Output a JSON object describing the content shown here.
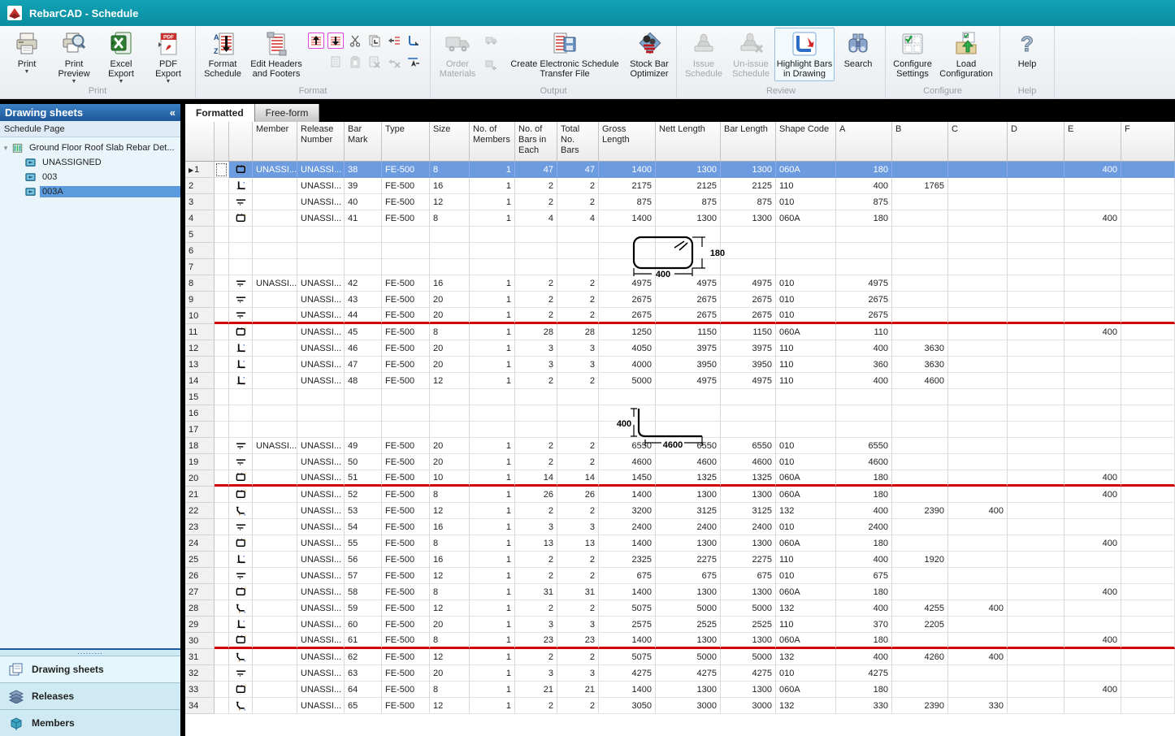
{
  "window": {
    "title": "RebarCAD - Schedule"
  },
  "ribbon": {
    "groups": [
      {
        "label": "Print",
        "buttons": [
          {
            "label": "Print",
            "icon": "printer",
            "dropdown": true
          },
          {
            "label": "Print Preview",
            "icon": "print-preview",
            "dropdown": true
          },
          {
            "label": "Excel Export",
            "icon": "excel",
            "dropdown": true
          },
          {
            "label": "PDF Export",
            "icon": "pdf",
            "dropdown": true
          }
        ]
      },
      {
        "label": "Format",
        "buttons": [
          {
            "label": "Format Schedule",
            "icon": "format-schedule"
          },
          {
            "label": "Edit Headers and Footers",
            "icon": "edit-headers",
            "mid": true
          }
        ],
        "small_top": [
          "move-bar-up",
          "move-bar-down",
          "cut",
          "copy",
          "insert-row",
          "renumber"
        ],
        "small_top_framed": [
          true,
          true,
          false,
          false,
          false,
          false
        ],
        "small_bottom": [
          "page",
          "paste",
          "delete-row",
          "delete-bar",
          "pick"
        ],
        "small_bottom_disabled": [
          true,
          true,
          true,
          true,
          false
        ]
      },
      {
        "label": "Output",
        "buttons": [
          {
            "label": "Order Materials",
            "icon": "truck",
            "disabled": true
          },
          {
            "label": "Create Electronic Schedule Transfer File",
            "icon": "transfer",
            "wide": true
          },
          {
            "label": "Stock Bar Optimizer",
            "icon": "optimizer"
          }
        ],
        "small_col": [
          "export-small-1",
          "export-small-2"
        ]
      },
      {
        "label": "Review",
        "buttons": [
          {
            "label": "Issue Schedule",
            "icon": "stamp",
            "disabled": true
          },
          {
            "label": "Un-issue Schedule",
            "icon": "stamp-x",
            "disabled": true
          },
          {
            "label": "Highlight Bars in Drawing",
            "icon": "highlight",
            "active": true,
            "mid": true
          },
          {
            "label": "Search",
            "icon": "binoculars"
          }
        ]
      },
      {
        "label": "Configure",
        "buttons": [
          {
            "label": "Configure Settings",
            "icon": "settings"
          },
          {
            "label": "Load Configuration",
            "icon": "load-config",
            "mid": true
          }
        ]
      },
      {
        "label": "Help",
        "buttons": [
          {
            "label": "Help",
            "icon": "help"
          }
        ]
      }
    ]
  },
  "sidebar": {
    "title": "Drawing sheets",
    "subtitle": "Schedule Page",
    "tree": {
      "root": "Ground Floor Roof Slab Rebar Det...",
      "children": [
        "UNASSIGNED",
        "003",
        "003A"
      ],
      "selected_index": 2
    },
    "nav": [
      "Drawing sheets",
      "Releases",
      "Members"
    ],
    "nav_active_index": 0
  },
  "tabs": {
    "labels": [
      "Formatted",
      "Free-form"
    ],
    "active": "Formatted"
  },
  "table": {
    "columns": [
      "Member",
      "Release Number",
      "Bar Mark",
      "Type",
      "Size",
      "No. of Members",
      "No. of Bars in Each",
      "Total No. Bars",
      "Gross Length",
      "Nett Length",
      "Bar Length",
      "Shape Code",
      "A",
      "B",
      "C",
      "D",
      "E",
      "F"
    ],
    "rows": [
      {
        "n": "1",
        "ic": "link",
        "m": "UNASSI...",
        "r": "UNASSI...",
        "mk": "38",
        "t": "FE-500",
        "s": "8",
        "nm": "1",
        "nb": "47",
        "tn": "47",
        "g": "1400",
        "nt": "1300",
        "bl": "1300",
        "sc": "060A",
        "A": "180",
        "E": "400",
        "sel": true
      },
      {
        "n": "2",
        "ic": "bent",
        "r": "UNASSI...",
        "mk": "39",
        "t": "FE-500",
        "s": "16",
        "nm": "1",
        "nb": "2",
        "tn": "2",
        "g": "2175",
        "nt": "2125",
        "bl": "2125",
        "sc": "110",
        "A": "400",
        "B": "1765"
      },
      {
        "n": "3",
        "ic": "straight",
        "r": "UNASSI...",
        "mk": "40",
        "t": "FE-500",
        "s": "12",
        "nm": "1",
        "nb": "2",
        "tn": "2",
        "g": "875",
        "nt": "875",
        "bl": "875",
        "sc": "010",
        "A": "875"
      },
      {
        "n": "4",
        "ic": "link",
        "r": "UNASSI...",
        "mk": "41",
        "t": "FE-500",
        "s": "8",
        "nm": "1",
        "nb": "4",
        "tn": "4",
        "g": "1400",
        "nt": "1300",
        "bl": "1300",
        "sc": "060A",
        "A": "180",
        "E": "400"
      },
      {
        "n": "5",
        "empty": true
      },
      {
        "n": "6",
        "empty": true
      },
      {
        "n": "7",
        "empty": true
      },
      {
        "n": "8",
        "ic": "straight",
        "m": "UNASSI...",
        "r": "UNASSI...",
        "mk": "42",
        "t": "FE-500",
        "s": "16",
        "nm": "1",
        "nb": "2",
        "tn": "2",
        "g": "4975",
        "nt": "4975",
        "bl": "4975",
        "sc": "010",
        "A": "4975"
      },
      {
        "n": "9",
        "ic": "straight",
        "r": "UNASSI...",
        "mk": "43",
        "t": "FE-500",
        "s": "20",
        "nm": "1",
        "nb": "2",
        "tn": "2",
        "g": "2675",
        "nt": "2675",
        "bl": "2675",
        "sc": "010",
        "A": "2675"
      },
      {
        "n": "10",
        "ic": "straight",
        "r": "UNASSI...",
        "mk": "44",
        "t": "FE-500",
        "s": "20",
        "nm": "1",
        "nb": "2",
        "tn": "2",
        "g": "2675",
        "nt": "2675",
        "bl": "2675",
        "sc": "010",
        "A": "2675",
        "red": true
      },
      {
        "n": "11",
        "ic": "link",
        "r": "UNASSI...",
        "mk": "45",
        "t": "FE-500",
        "s": "8",
        "nm": "1",
        "nb": "28",
        "tn": "28",
        "g": "1250",
        "nt": "1150",
        "bl": "1150",
        "sc": "060A",
        "A": "110",
        "E": "400"
      },
      {
        "n": "12",
        "ic": "bent",
        "r": "UNASSI...",
        "mk": "46",
        "t": "FE-500",
        "s": "20",
        "nm": "1",
        "nb": "3",
        "tn": "3",
        "g": "4050",
        "nt": "3975",
        "bl": "3975",
        "sc": "110",
        "A": "400",
        "B": "3630"
      },
      {
        "n": "13",
        "ic": "bent",
        "r": "UNASSI...",
        "mk": "47",
        "t": "FE-500",
        "s": "20",
        "nm": "1",
        "nb": "3",
        "tn": "3",
        "g": "4000",
        "nt": "3950",
        "bl": "3950",
        "sc": "110",
        "A": "360",
        "B": "3630"
      },
      {
        "n": "14",
        "ic": "bent",
        "r": "UNASSI...",
        "mk": "48",
        "t": "FE-500",
        "s": "12",
        "nm": "1",
        "nb": "2",
        "tn": "2",
        "g": "5000",
        "nt": "4975",
        "bl": "4975",
        "sc": "110",
        "A": "400",
        "B": "4600"
      },
      {
        "n": "15",
        "empty": true
      },
      {
        "n": "16",
        "empty": true
      },
      {
        "n": "17",
        "empty": true
      },
      {
        "n": "18",
        "ic": "straight",
        "m": "UNASSI...",
        "r": "UNASSI...",
        "mk": "49",
        "t": "FE-500",
        "s": "20",
        "nm": "1",
        "nb": "2",
        "tn": "2",
        "g": "6550",
        "nt": "6550",
        "bl": "6550",
        "sc": "010",
        "A": "6550"
      },
      {
        "n": "19",
        "ic": "straight",
        "r": "UNASSI...",
        "mk": "50",
        "t": "FE-500",
        "s": "20",
        "nm": "1",
        "nb": "2",
        "tn": "2",
        "g": "4600",
        "nt": "4600",
        "bl": "4600",
        "sc": "010",
        "A": "4600"
      },
      {
        "n": "20",
        "ic": "link",
        "r": "UNASSI...",
        "mk": "51",
        "t": "FE-500",
        "s": "10",
        "nm": "1",
        "nb": "14",
        "tn": "14",
        "g": "1450",
        "nt": "1325",
        "bl": "1325",
        "sc": "060A",
        "A": "180",
        "E": "400",
        "red": true
      },
      {
        "n": "21",
        "ic": "link",
        "r": "UNASSI...",
        "mk": "52",
        "t": "FE-500",
        "s": "8",
        "nm": "1",
        "nb": "26",
        "tn": "26",
        "g": "1400",
        "nt": "1300",
        "bl": "1300",
        "sc": "060A",
        "A": "180",
        "E": "400"
      },
      {
        "n": "22",
        "ic": "crank",
        "r": "UNASSI...",
        "mk": "53",
        "t": "FE-500",
        "s": "12",
        "nm": "1",
        "nb": "2",
        "tn": "2",
        "g": "3200",
        "nt": "3125",
        "bl": "3125",
        "sc": "132",
        "A": "400",
        "B": "2390",
        "C": "400"
      },
      {
        "n": "23",
        "ic": "straight",
        "r": "UNASSI...",
        "mk": "54",
        "t": "FE-500",
        "s": "16",
        "nm": "1",
        "nb": "3",
        "tn": "3",
        "g": "2400",
        "nt": "2400",
        "bl": "2400",
        "sc": "010",
        "A": "2400"
      },
      {
        "n": "24",
        "ic": "link",
        "r": "UNASSI...",
        "mk": "55",
        "t": "FE-500",
        "s": "8",
        "nm": "1",
        "nb": "13",
        "tn": "13",
        "g": "1400",
        "nt": "1300",
        "bl": "1300",
        "sc": "060A",
        "A": "180",
        "E": "400"
      },
      {
        "n": "25",
        "ic": "bent",
        "r": "UNASSI...",
        "mk": "56",
        "t": "FE-500",
        "s": "16",
        "nm": "1",
        "nb": "2",
        "tn": "2",
        "g": "2325",
        "nt": "2275",
        "bl": "2275",
        "sc": "110",
        "A": "400",
        "B": "1920"
      },
      {
        "n": "26",
        "ic": "straight",
        "r": "UNASSI...",
        "mk": "57",
        "t": "FE-500",
        "s": "12",
        "nm": "1",
        "nb": "2",
        "tn": "2",
        "g": "675",
        "nt": "675",
        "bl": "675",
        "sc": "010",
        "A": "675"
      },
      {
        "n": "27",
        "ic": "link",
        "r": "UNASSI...",
        "mk": "58",
        "t": "FE-500",
        "s": "8",
        "nm": "1",
        "nb": "31",
        "tn": "31",
        "g": "1400",
        "nt": "1300",
        "bl": "1300",
        "sc": "060A",
        "A": "180",
        "E": "400"
      },
      {
        "n": "28",
        "ic": "crank",
        "r": "UNASSI...",
        "mk": "59",
        "t": "FE-500",
        "s": "12",
        "nm": "1",
        "nb": "2",
        "tn": "2",
        "g": "5075",
        "nt": "5000",
        "bl": "5000",
        "sc": "132",
        "A": "400",
        "B": "4255",
        "C": "400"
      },
      {
        "n": "29",
        "ic": "bent",
        "r": "UNASSI...",
        "mk": "60",
        "t": "FE-500",
        "s": "20",
        "nm": "1",
        "nb": "3",
        "tn": "3",
        "g": "2575",
        "nt": "2525",
        "bl": "2525",
        "sc": "110",
        "A": "370",
        "B": "2205"
      },
      {
        "n": "30",
        "ic": "link",
        "r": "UNASSI...",
        "mk": "61",
        "t": "FE-500",
        "s": "8",
        "nm": "1",
        "nb": "23",
        "tn": "23",
        "g": "1400",
        "nt": "1300",
        "bl": "1300",
        "sc": "060A",
        "A": "180",
        "E": "400",
        "red": true
      },
      {
        "n": "31",
        "ic": "crank",
        "r": "UNASSI...",
        "mk": "62",
        "t": "FE-500",
        "s": "12",
        "nm": "1",
        "nb": "2",
        "tn": "2",
        "g": "5075",
        "nt": "5000",
        "bl": "5000",
        "sc": "132",
        "A": "400",
        "B": "4260",
        "C": "400"
      },
      {
        "n": "32",
        "ic": "straight",
        "r": "UNASSI...",
        "mk": "63",
        "t": "FE-500",
        "s": "20",
        "nm": "1",
        "nb": "3",
        "tn": "3",
        "g": "4275",
        "nt": "4275",
        "bl": "4275",
        "sc": "010",
        "A": "4275"
      },
      {
        "n": "33",
        "ic": "link",
        "r": "UNASSI...",
        "mk": "64",
        "t": "FE-500",
        "s": "8",
        "nm": "1",
        "nb": "21",
        "tn": "21",
        "g": "1400",
        "nt": "1300",
        "bl": "1300",
        "sc": "060A",
        "A": "180",
        "E": "400"
      },
      {
        "n": "34",
        "ic": "crank",
        "r": "UNASSI...",
        "mk": "65",
        "t": "FE-500",
        "s": "12",
        "nm": "1",
        "nb": "2",
        "tn": "2",
        "g": "3050",
        "nt": "3000",
        "bl": "3000",
        "sc": "132",
        "A": "330",
        "B": "2390",
        "C": "330"
      }
    ]
  },
  "diagrams": [
    {
      "shape": "closed-link",
      "width_label": "400",
      "height_label": "180"
    },
    {
      "shape": "l-bar",
      "vertical_label": "400",
      "horizontal_label": "4600"
    }
  ],
  "colors": {
    "titlebar_teal": "#0b94a6",
    "sidebar_header_blue": "#1c5799",
    "selection_row_blue": "#6d9be0",
    "tree_selection_blue": "#5b9bdd",
    "red_separator": "#d40000"
  }
}
